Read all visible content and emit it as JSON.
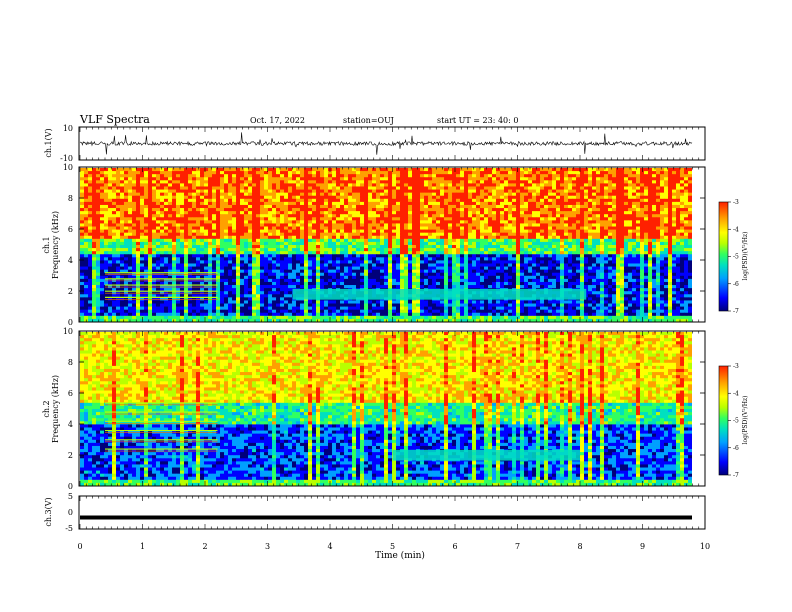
{
  "header": {
    "title": "VLF Spectra",
    "date": "Oct. 17, 2022",
    "station": "station=OUJ",
    "start": "start UT = 23: 40: 0"
  },
  "colors": {
    "spectrogram_scale": [
      "#00007a",
      "#0000ff",
      "#00a0ff",
      "#00e0c0",
      "#30ff60",
      "#b8ff00",
      "#ffff00",
      "#ffa000",
      "#ff2000"
    ],
    "trace": "#000000",
    "axes": "#000000"
  },
  "chart_data": [
    {
      "type": "line",
      "name": "ch1-waveform",
      "ylabel": "ch.1(V)",
      "ylim": [
        -10,
        10
      ],
      "yticks": [
        "10",
        "-10"
      ],
      "xlim": [
        0,
        10
      ],
      "description_values": "noisy waveform centred near 0 V with spikes up to about ±8 V"
    },
    {
      "type": "heatmap",
      "name": "ch1-spectrogram",
      "ylabel": "ch.1 Frequency (kHz)",
      "ylim": [
        0,
        10
      ],
      "yticks": [
        "0",
        "2",
        "4",
        "6",
        "8",
        "10"
      ],
      "xlim": [
        0,
        9.8
      ],
      "colorbar": {
        "label": "log(PSD)(V²/Hz)",
        "range": [
          -7,
          -3
        ],
        "ticks": [
          "-3",
          "-4",
          "-5",
          "-6",
          "-7"
        ]
      },
      "bands": [
        {
          "fmin": 0,
          "fmax": 4.5,
          "level": -6.4
        },
        {
          "fmin": 4.5,
          "fmax": 5.5,
          "level": -5.0
        },
        {
          "fmin": 5.5,
          "fmax": 10,
          "level": -3.6
        }
      ],
      "tones_khz": [
        3.2,
        2.8,
        2.4,
        2.0,
        1.6
      ],
      "tones_time_min": [
        0.4,
        2.2
      ],
      "emission": {
        "t_start": 3.4,
        "t_end": 8.1,
        "f_khz": 1.8
      }
    },
    {
      "type": "heatmap",
      "name": "ch2-spectrogram",
      "ylabel": "ch.2 Frequency (kHz)",
      "ylim": [
        0,
        10
      ],
      "yticks": [
        "0",
        "2",
        "4",
        "6",
        "8",
        "10"
      ],
      "xlim": [
        0,
        9.8
      ],
      "colorbar": {
        "label": "log(PSD)(V²/Hz)",
        "range": [
          -7,
          -3
        ],
        "ticks": [
          "-3",
          "-4",
          "-5",
          "-6",
          "-7"
        ]
      },
      "bands": [
        {
          "fmin": 0,
          "fmax": 4.0,
          "level": -6.2
        },
        {
          "fmin": 4.0,
          "fmax": 5.5,
          "level": -5.2
        },
        {
          "fmin": 5.5,
          "fmax": 10,
          "level": -4.1
        }
      ],
      "tones_khz": [
        5.4,
        4.8,
        4.2,
        3.6,
        3.0,
        2.4
      ],
      "tones_time_min": [
        0.4,
        2.2
      ],
      "emission": {
        "t_start": 5.0,
        "t_end": 8.0,
        "f_khz": 2.0
      }
    },
    {
      "type": "line",
      "name": "ch3-waveform",
      "ylabel": "ch.3(V)",
      "ylim": [
        -5,
        5
      ],
      "yticks": [
        "5",
        "0",
        "-5"
      ],
      "xlim": [
        0,
        10
      ],
      "values_constant": -1.5
    }
  ],
  "xaxis": {
    "label": "Time (min)",
    "ticks": [
      "0",
      "1",
      "2",
      "3",
      "4",
      "5",
      "6",
      "7",
      "8",
      "9",
      "10"
    ]
  }
}
